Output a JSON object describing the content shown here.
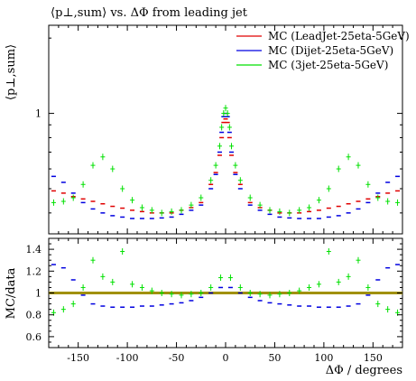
{
  "title": "⟨p⊥,sum⟩ vs. ΔΦ from leading jet",
  "colors": {
    "leadjet": "#e00000",
    "dijet": "#0000e0",
    "threejet": "#00e000",
    "data_ref": "#a09000",
    "frame": "#000000"
  },
  "chart_data": [
    {
      "type": "scatter",
      "panel": "main",
      "title": "⟨p⊥,sum⟩ vs. ΔΦ from leading jet",
      "ylabel": "⟨p⊥,sum⟩",
      "xlabel": "",
      "xlim": [
        -180,
        180
      ],
      "ylim": [
        0.33,
        2.25
      ],
      "yscale": "log",
      "yticks": [
        1
      ],
      "ytick_labels": [
        "1"
      ],
      "legend_position": "top-right",
      "x": [
        -175,
        -165,
        -155,
        -145,
        -135,
        -125,
        -115,
        -105,
        -95,
        -85,
        -75,
        -65,
        -55,
        -45,
        -35,
        -25,
        -15,
        -10,
        -6,
        -4,
        -2,
        0,
        2,
        4,
        6,
        10,
        15,
        25,
        35,
        45,
        55,
        65,
        75,
        85,
        95,
        105,
        115,
        125,
        135,
        145,
        155,
        165,
        175
      ],
      "series": [
        {
          "name": "MC (LeadJet-25eta-5GeV)",
          "color": "#e00000",
          "values": [
            0.49,
            0.48,
            0.465,
            0.455,
            0.445,
            0.435,
            0.425,
            0.418,
            0.41,
            0.405,
            0.4,
            0.4,
            0.4,
            0.41,
            0.42,
            0.44,
            0.52,
            0.58,
            0.68,
            0.8,
            0.92,
            0.95,
            0.92,
            0.8,
            0.68,
            0.58,
            0.52,
            0.44,
            0.42,
            0.41,
            0.4,
            0.4,
            0.4,
            0.405,
            0.41,
            0.418,
            0.425,
            0.435,
            0.445,
            0.455,
            0.465,
            0.48,
            0.49
          ]
        },
        {
          "name": "MC (Dijet-25eta-5GeV)",
          "color": "#0000e0",
          "values": [
            0.56,
            0.53,
            0.48,
            0.44,
            0.415,
            0.4,
            0.39,
            0.385,
            0.38,
            0.38,
            0.38,
            0.382,
            0.385,
            0.395,
            0.41,
            0.43,
            0.5,
            0.57,
            0.7,
            0.84,
            0.97,
            1.0,
            0.97,
            0.84,
            0.7,
            0.57,
            0.5,
            0.43,
            0.41,
            0.395,
            0.385,
            0.382,
            0.38,
            0.38,
            0.38,
            0.385,
            0.39,
            0.4,
            0.415,
            0.44,
            0.48,
            0.53,
            0.56
          ]
        },
        {
          "name": "MC (3jet-25eta-5GeV)",
          "color": "#00e000",
          "values": [
            0.44,
            0.445,
            0.46,
            0.52,
            0.62,
            0.67,
            0.6,
            0.5,
            0.45,
            0.42,
            0.41,
            0.4,
            0.405,
            0.41,
            0.43,
            0.46,
            0.54,
            0.62,
            0.74,
            0.88,
            1.0,
            1.05,
            1.0,
            0.88,
            0.74,
            0.62,
            0.54,
            0.46,
            0.43,
            0.41,
            0.405,
            0.4,
            0.41,
            0.42,
            0.45,
            0.5,
            0.6,
            0.67,
            0.62,
            0.52,
            0.46,
            0.445,
            0.44
          ]
        }
      ]
    },
    {
      "type": "scatter",
      "panel": "ratio",
      "xlabel": "ΔΦ / degrees",
      "ylabel": "MC/data",
      "xlim": [
        -180,
        180
      ],
      "ylim": [
        0.5,
        1.5
      ],
      "yticks": [
        0.6,
        0.8,
        1,
        1.2,
        1.4
      ],
      "ytick_labels": [
        "0.6",
        "0.8",
        "1",
        "1.2",
        "1.4"
      ],
      "xticks": [
        -150,
        -100,
        -50,
        0,
        50,
        100,
        150
      ],
      "xtick_labels": [
        "-150",
        "-100",
        "-50",
        "0",
        "50",
        "100",
        "150"
      ],
      "reference_line": 1.0,
      "x": [
        -175,
        -165,
        -155,
        -145,
        -135,
        -125,
        -115,
        -105,
        -95,
        -85,
        -75,
        -65,
        -55,
        -45,
        -35,
        -25,
        -15,
        -5,
        5,
        15,
        25,
        35,
        45,
        55,
        65,
        75,
        85,
        95,
        105,
        115,
        125,
        135,
        145,
        155,
        165,
        175
      ],
      "series": [
        {
          "name": "MC (LeadJet-25eta-5GeV)",
          "color": "#e00000",
          "values": []
        },
        {
          "name": "MC (Dijet-25eta-5GeV)",
          "color": "#0000e0",
          "values": [
            1.26,
            1.23,
            1.12,
            0.98,
            0.9,
            0.88,
            0.87,
            0.87,
            0.87,
            0.88,
            0.88,
            0.89,
            0.9,
            0.91,
            0.93,
            0.96,
            1.0,
            1.05,
            1.05,
            1.0,
            0.96,
            0.93,
            0.91,
            0.9,
            0.89,
            0.88,
            0.88,
            0.87,
            0.87,
            0.87,
            0.88,
            0.9,
            0.98,
            1.12,
            1.23,
            1.26
          ]
        },
        {
          "name": "MC (3jet-25eta-5GeV)",
          "color": "#00e000",
          "values": [
            0.82,
            0.85,
            0.9,
            1.05,
            1.3,
            1.15,
            1.1,
            1.38,
            1.08,
            1.05,
            1.02,
            1.0,
            0.99,
            0.98,
            0.99,
            1.0,
            1.05,
            1.14,
            1.14,
            1.05,
            1.0,
            0.99,
            0.98,
            0.99,
            1.0,
            1.02,
            1.05,
            1.08,
            1.38,
            1.1,
            1.15,
            1.3,
            1.05,
            0.9,
            0.85,
            0.82
          ]
        }
      ]
    }
  ]
}
